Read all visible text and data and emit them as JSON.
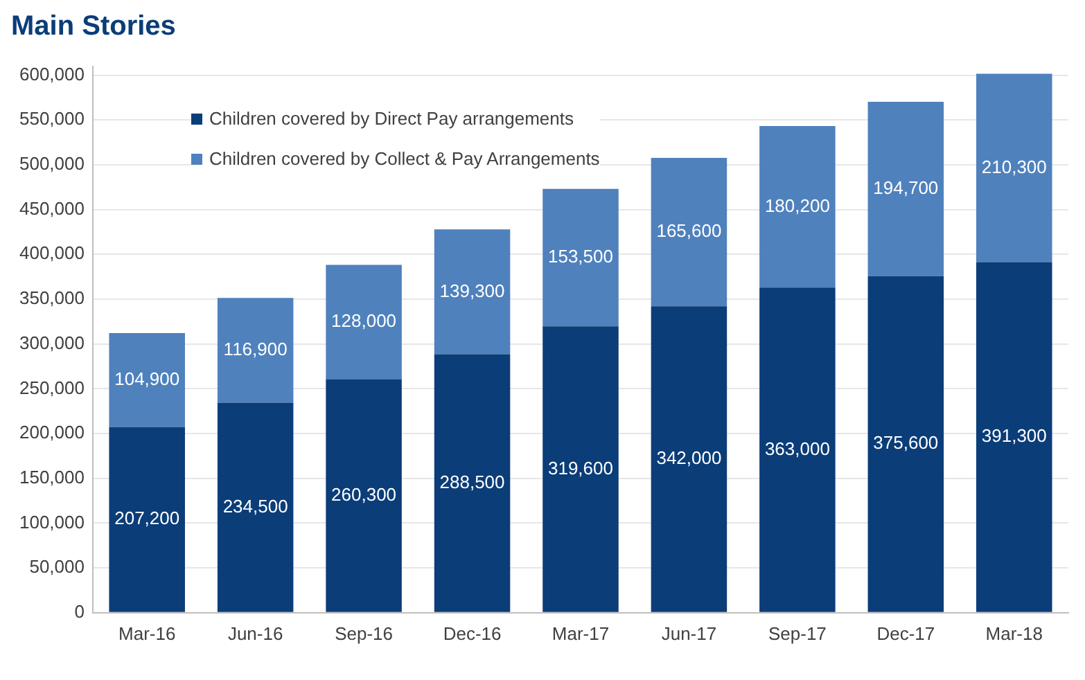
{
  "chart_data": {
    "type": "bar",
    "title": "Main Stories",
    "stacked": true,
    "categories": [
      "Mar-16",
      "Jun-16",
      "Sep-16",
      "Dec-16",
      "Mar-17",
      "Jun-17",
      "Sep-17",
      "Dec-17",
      "Mar-18"
    ],
    "series": [
      {
        "name": "Children covered by Direct Pay arrangements",
        "color": "#0b3d78",
        "values": [
          207200,
          234500,
          260300,
          288500,
          319600,
          342000,
          363000,
          375600,
          391300
        ],
        "value_labels": [
          "207,200",
          "234,500",
          "260,300",
          "288,500",
          "319,600",
          "342,000",
          "363,000",
          "375,600",
          "391,300"
        ]
      },
      {
        "name": "Children covered by Collect & Pay Arrangements",
        "color": "#4f81bd",
        "values": [
          104900,
          116900,
          128000,
          139300,
          153500,
          165600,
          180200,
          194700,
          210300
        ],
        "value_labels": [
          "104,900",
          "116,900",
          "128,000",
          "139,300",
          "153,500",
          "165,600",
          "180,200",
          "194,700",
          "210,300"
        ]
      }
    ],
    "ylim": [
      0,
      610000
    ],
    "yticks": [
      {
        "value": 0,
        "label": "0"
      },
      {
        "value": 50000,
        "label": "50,000"
      },
      {
        "value": 100000,
        "label": "100,000"
      },
      {
        "value": 150000,
        "label": "150,000"
      },
      {
        "value": 200000,
        "label": "200,000"
      },
      {
        "value": 250000,
        "label": "250,000"
      },
      {
        "value": 300000,
        "label": "300,000"
      },
      {
        "value": 350000,
        "label": "350,000"
      },
      {
        "value": 400000,
        "label": "400,000"
      },
      {
        "value": 450000,
        "label": "450,000"
      },
      {
        "value": 500000,
        "label": "500,000"
      },
      {
        "value": 550000,
        "label": "550,000"
      },
      {
        "value": 600000,
        "label": "600,000"
      }
    ],
    "grid": "y",
    "legend": "top left"
  }
}
